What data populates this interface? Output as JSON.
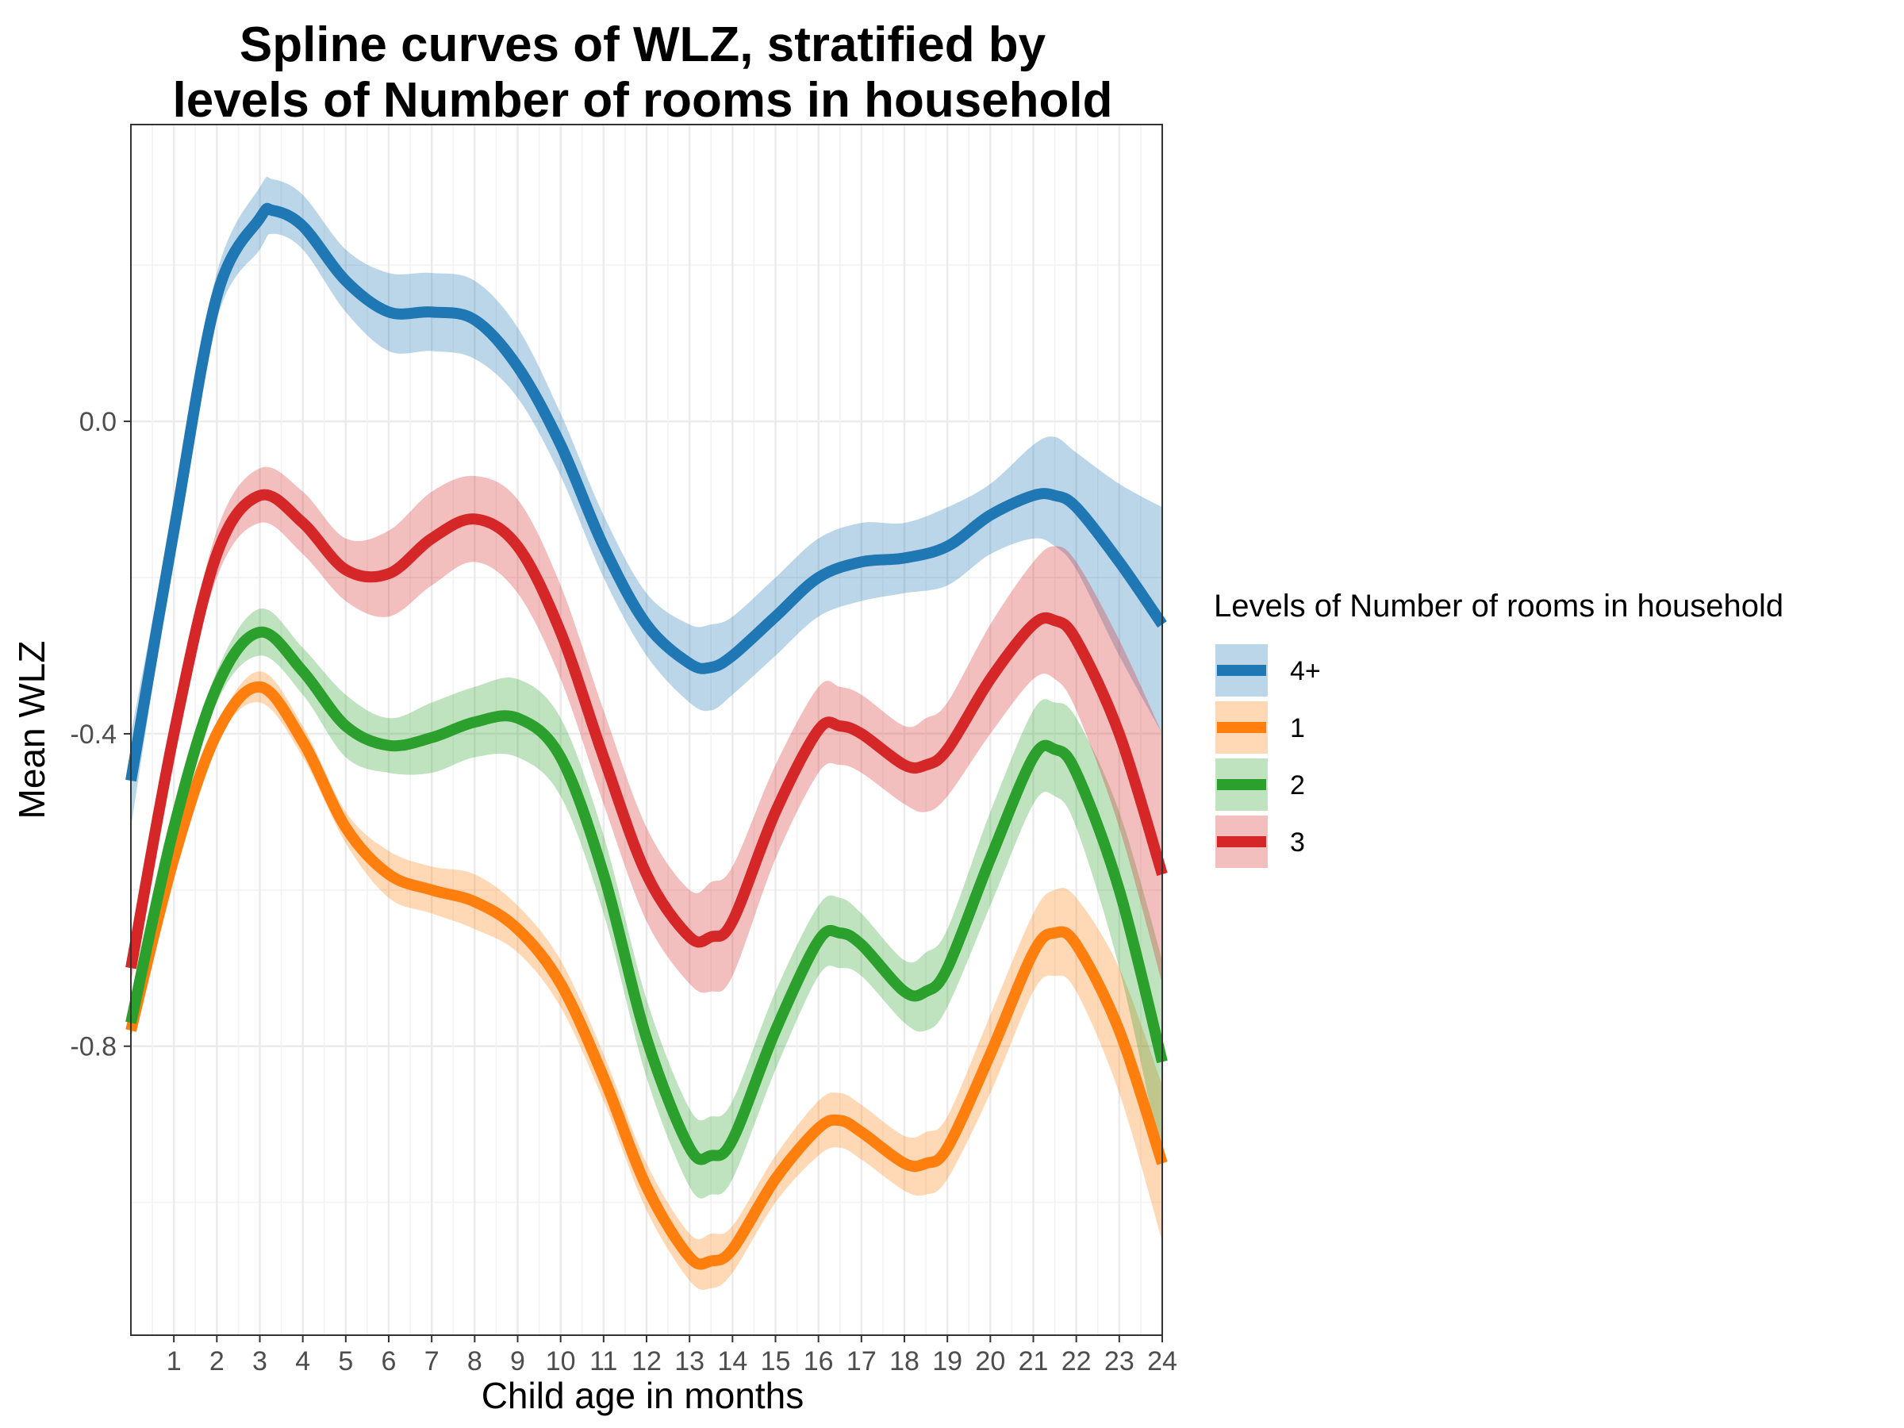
{
  "chart_data": {
    "type": "line",
    "title_line1": "Spline curves of WLZ, stratified by",
    "title_line2": "levels of Number of rooms in household",
    "xlabel": "Child age in months",
    "ylabel": "Mean WLZ",
    "xlim": [
      0,
      24
    ],
    "ylim": [
      -1.17,
      0.38
    ],
    "x_ticks": [
      1,
      2,
      3,
      4,
      5,
      6,
      7,
      8,
      9,
      10,
      11,
      12,
      13,
      14,
      15,
      16,
      17,
      18,
      19,
      20,
      21,
      22,
      23,
      24
    ],
    "x_tick_labels": [
      "1",
      "2",
      "3",
      "4",
      "5",
      "6",
      "7",
      "8",
      "9",
      "10",
      "11",
      "12",
      "13",
      "14",
      "15",
      "16",
      "17",
      "18",
      "19",
      "20",
      "21",
      "22",
      "23",
      "24"
    ],
    "y_ticks": [
      0.0,
      -0.4,
      -0.8
    ],
    "y_tick_labels": [
      "0.0",
      "-0.4",
      "-0.8"
    ],
    "grid": true,
    "legend": {
      "title": "Levels of Number of rooms in household",
      "position": "right"
    },
    "series": [
      {
        "name": "4+",
        "color": "#1f77b4",
        "x": [
          0,
          1,
          2,
          3,
          3.3,
          4,
          5,
          6,
          7,
          8,
          9,
          10,
          11,
          12,
          13,
          13.5,
          14,
          15,
          16,
          17,
          18,
          19,
          20,
          21,
          21.5,
          22,
          23,
          24
        ],
        "values": [
          -0.46,
          -0.14,
          0.16,
          0.26,
          0.27,
          0.25,
          0.18,
          0.14,
          0.14,
          0.13,
          0.07,
          -0.03,
          -0.16,
          -0.26,
          -0.31,
          -0.315,
          -0.3,
          -0.25,
          -0.2,
          -0.18,
          -0.175,
          -0.16,
          -0.12,
          -0.095,
          -0.095,
          -0.11,
          -0.18,
          -0.26
        ],
        "lower": [
          -0.52,
          -0.17,
          0.13,
          0.22,
          0.24,
          0.22,
          0.14,
          0.09,
          0.09,
          0.08,
          0.03,
          -0.07,
          -0.2,
          -0.3,
          -0.36,
          -0.37,
          -0.35,
          -0.3,
          -0.25,
          -0.23,
          -0.22,
          -0.21,
          -0.17,
          -0.15,
          -0.16,
          -0.19,
          -0.3,
          -0.4
        ],
        "upper": [
          -0.4,
          -0.11,
          0.19,
          0.3,
          0.31,
          0.29,
          0.22,
          0.19,
          0.19,
          0.18,
          0.12,
          0.01,
          -0.12,
          -0.22,
          -0.26,
          -0.26,
          -0.25,
          -0.2,
          -0.15,
          -0.13,
          -0.13,
          -0.11,
          -0.08,
          -0.03,
          -0.02,
          -0.04,
          -0.08,
          -0.11
        ]
      },
      {
        "name": "1",
        "color": "#ff7f0e",
        "x": [
          0,
          1,
          2,
          3,
          4,
          5,
          6,
          7,
          8,
          9,
          10,
          11,
          12,
          13,
          13.5,
          14,
          15,
          16,
          16.5,
          17,
          18,
          18.5,
          19,
          20,
          21,
          21.5,
          22,
          23,
          24
        ],
        "values": [
          -0.78,
          -0.56,
          -0.4,
          -0.34,
          -0.41,
          -0.52,
          -0.58,
          -0.6,
          -0.615,
          -0.65,
          -0.72,
          -0.84,
          -0.98,
          -1.07,
          -1.075,
          -1.06,
          -0.97,
          -0.905,
          -0.895,
          -0.91,
          -0.95,
          -0.95,
          -0.93,
          -0.81,
          -0.68,
          -0.655,
          -0.67,
          -0.78,
          -0.95
        ],
        "lower": [
          -0.79,
          -0.57,
          -0.41,
          -0.36,
          -0.43,
          -0.54,
          -0.61,
          -0.63,
          -0.65,
          -0.68,
          -0.75,
          -0.87,
          -1.01,
          -1.1,
          -1.11,
          -1.09,
          -1.0,
          -0.94,
          -0.93,
          -0.945,
          -0.985,
          -0.99,
          -0.97,
          -0.86,
          -0.73,
          -0.71,
          -0.73,
          -0.86,
          -1.05
        ],
        "upper": [
          -0.77,
          -0.55,
          -0.39,
          -0.32,
          -0.39,
          -0.5,
          -0.55,
          -0.57,
          -0.58,
          -0.62,
          -0.69,
          -0.81,
          -0.95,
          -1.04,
          -1.04,
          -1.03,
          -0.94,
          -0.87,
          -0.86,
          -0.875,
          -0.915,
          -0.91,
          -0.89,
          -0.76,
          -0.63,
          -0.6,
          -0.61,
          -0.7,
          -0.85
        ]
      },
      {
        "name": "2",
        "color": "#2ca02c",
        "x": [
          0,
          1,
          2,
          3,
          4,
          5,
          6,
          7,
          8,
          9,
          10,
          11,
          12,
          13,
          13.5,
          14,
          15,
          16,
          16.5,
          17,
          18,
          18.5,
          19,
          20,
          21,
          21.5,
          22,
          23,
          24
        ],
        "values": [
          -0.77,
          -0.52,
          -0.34,
          -0.27,
          -0.32,
          -0.39,
          -0.415,
          -0.405,
          -0.385,
          -0.38,
          -0.43,
          -0.58,
          -0.79,
          -0.93,
          -0.94,
          -0.92,
          -0.78,
          -0.665,
          -0.655,
          -0.67,
          -0.73,
          -0.73,
          -0.7,
          -0.56,
          -0.43,
          -0.42,
          -0.45,
          -0.6,
          -0.82
        ],
        "lower": [
          -0.79,
          -0.54,
          -0.36,
          -0.3,
          -0.35,
          -0.43,
          -0.45,
          -0.45,
          -0.43,
          -0.43,
          -0.48,
          -0.63,
          -0.84,
          -0.98,
          -0.99,
          -0.97,
          -0.83,
          -0.71,
          -0.7,
          -0.71,
          -0.77,
          -0.78,
          -0.75,
          -0.62,
          -0.49,
          -0.48,
          -0.52,
          -0.7,
          -0.95
        ],
        "upper": [
          -0.75,
          -0.5,
          -0.32,
          -0.24,
          -0.29,
          -0.35,
          -0.38,
          -0.36,
          -0.34,
          -0.33,
          -0.38,
          -0.53,
          -0.74,
          -0.88,
          -0.89,
          -0.87,
          -0.73,
          -0.62,
          -0.61,
          -0.63,
          -0.69,
          -0.68,
          -0.65,
          -0.5,
          -0.37,
          -0.36,
          -0.38,
          -0.5,
          -0.69
        ]
      },
      {
        "name": "3",
        "color": "#d62728",
        "x": [
          0,
          1,
          2,
          3,
          4,
          5,
          6,
          7,
          8,
          9,
          10,
          11,
          12,
          13,
          13.5,
          14,
          15,
          16,
          16.5,
          17,
          18,
          18.5,
          19,
          20,
          21,
          21.5,
          22,
          23,
          24
        ],
        "values": [
          -0.7,
          -0.4,
          -0.17,
          -0.095,
          -0.13,
          -0.19,
          -0.195,
          -0.15,
          -0.125,
          -0.16,
          -0.27,
          -0.43,
          -0.58,
          -0.66,
          -0.66,
          -0.64,
          -0.5,
          -0.395,
          -0.39,
          -0.4,
          -0.44,
          -0.44,
          -0.42,
          -0.33,
          -0.26,
          -0.255,
          -0.28,
          -0.4,
          -0.58
        ],
        "lower": [
          -0.72,
          -0.42,
          -0.2,
          -0.13,
          -0.17,
          -0.23,
          -0.25,
          -0.21,
          -0.18,
          -0.22,
          -0.33,
          -0.49,
          -0.64,
          -0.72,
          -0.73,
          -0.71,
          -0.56,
          -0.45,
          -0.44,
          -0.45,
          -0.49,
          -0.5,
          -0.48,
          -0.4,
          -0.33,
          -0.33,
          -0.37,
          -0.52,
          -0.72
        ],
        "upper": [
          -0.68,
          -0.38,
          -0.14,
          -0.06,
          -0.09,
          -0.15,
          -0.14,
          -0.09,
          -0.07,
          -0.1,
          -0.21,
          -0.37,
          -0.52,
          -0.6,
          -0.59,
          -0.57,
          -0.44,
          -0.34,
          -0.34,
          -0.35,
          -0.39,
          -0.38,
          -0.36,
          -0.26,
          -0.18,
          -0.16,
          -0.18,
          -0.28,
          -0.4
        ]
      }
    ]
  }
}
